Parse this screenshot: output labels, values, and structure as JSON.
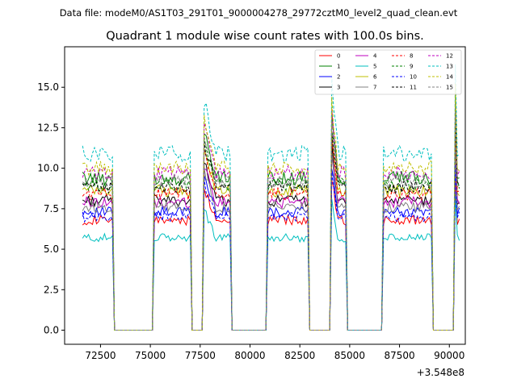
{
  "chart_data": {
    "type": "line",
    "suptitle": "Data file: modeM0/AS1T03_291T01_9000004278_29772cztM0_level2_quad_clean.evt",
    "title": "Quadrant 1 module wise count rates with 100.0s bins.",
    "xlabel": "",
    "ylabel": "",
    "x_offset_label": "+3.548e8",
    "xlim": [
      70700,
      90800
    ],
    "ylim": [
      -0.87,
      17.5
    ],
    "x_ticks": [
      72500,
      75000,
      77500,
      80000,
      82500,
      85000,
      87500,
      90000
    ],
    "x_tick_labels": [
      "72500",
      "75000",
      "77500",
      "80000",
      "82500",
      "85000",
      "87500",
      "90000"
    ],
    "y_ticks": [
      0.0,
      2.5,
      5.0,
      7.5,
      10.0,
      12.5,
      15.0
    ],
    "y_tick_labels": [
      "0.0",
      "2.5",
      "5.0",
      "7.5",
      "10.0",
      "12.5",
      "15.0"
    ],
    "legend_location": "top-right",
    "x_start": 71600,
    "bin_size": 100,
    "segments": [
      {
        "start": 71600,
        "end": 73100,
        "peak": 1.0
      },
      {
        "start": 75200,
        "end": 77000,
        "peak": 1.0
      },
      {
        "start": 77700,
        "end": 79000,
        "peak": 1.3
      },
      {
        "start": 80900,
        "end": 82900,
        "peak": 1.0
      },
      {
        "start": 84100,
        "end": 84800,
        "peak": 1.4
      },
      {
        "start": 86700,
        "end": 89100,
        "peak": 1.0
      },
      {
        "start": 90300,
        "end": 90500,
        "peak": 1.5
      }
    ],
    "gap_value": 0.0,
    "series": [
      {
        "name": "0",
        "color": "#ff0000",
        "dash": "solid",
        "level": 6.8
      },
      {
        "name": "1",
        "color": "#008000",
        "dash": "solid",
        "level": 9.4
      },
      {
        "name": "2",
        "color": "#0000ff",
        "dash": "solid",
        "level": 7.3
      },
      {
        "name": "3",
        "color": "#000000",
        "dash": "solid",
        "level": 8.0
      },
      {
        "name": "4",
        "color": "#bf00bf",
        "dash": "solid",
        "level": 7.9
      },
      {
        "name": "5",
        "color": "#00bfbf",
        "dash": "solid",
        "level": 5.7
      },
      {
        "name": "6",
        "color": "#bfbf00",
        "dash": "solid",
        "level": 8.6
      },
      {
        "name": "7",
        "color": "#808080",
        "dash": "solid",
        "level": 7.6
      },
      {
        "name": "8",
        "color": "#ff0000",
        "dash": "dashed",
        "level": 8.4
      },
      {
        "name": "9",
        "color": "#008000",
        "dash": "dashed",
        "level": 9.0
      },
      {
        "name": "10",
        "color": "#0000ff",
        "dash": "dashed",
        "level": 7.0
      },
      {
        "name": "11",
        "color": "#000000",
        "dash": "dashed",
        "level": 8.8
      },
      {
        "name": "12",
        "color": "#bf00bf",
        "dash": "dashed",
        "level": 9.7
      },
      {
        "name": "13",
        "color": "#00bfbf",
        "dash": "dashed",
        "level": 10.9
      },
      {
        "name": "14",
        "color": "#bfbf00",
        "dash": "dashed",
        "level": 10.0
      },
      {
        "name": "15",
        "color": "#808080",
        "dash": "dashed",
        "level": 9.2
      }
    ]
  }
}
